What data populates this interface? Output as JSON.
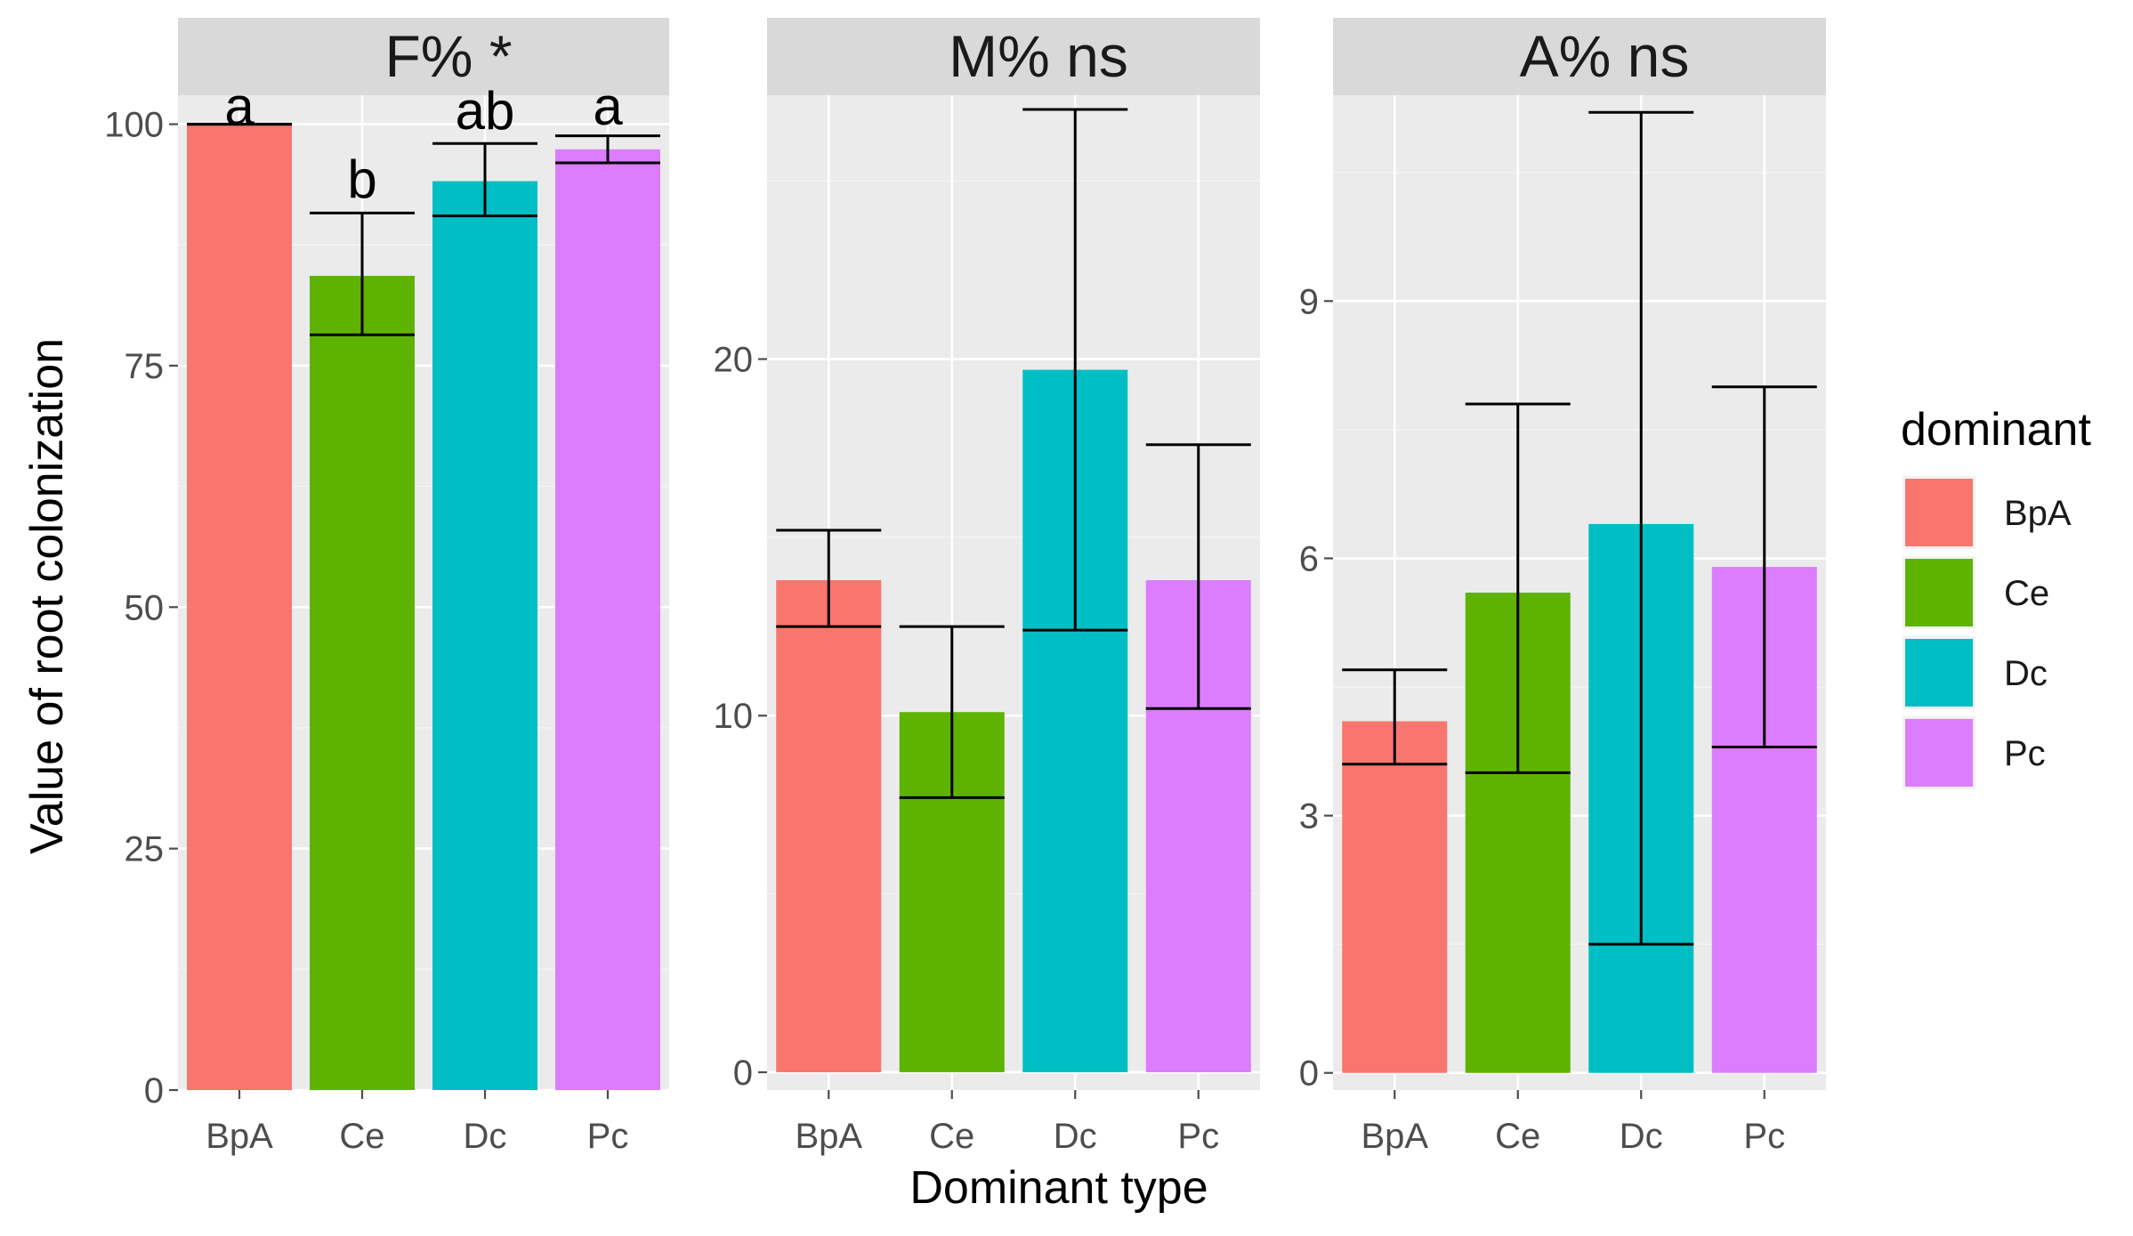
{
  "chart_data": {
    "type": "bar",
    "ylabel": "Value of root colonization",
    "xlabel": "Dominant type",
    "categories": [
      "BpA",
      "Ce",
      "Dc",
      "Pc"
    ],
    "colors": {
      "BpA": "#f8766d",
      "Ce": "#5eb300",
      "Dc": "#00bfc4",
      "Pc": "#dc7cff"
    },
    "legend": {
      "title": "dominant",
      "position": "right",
      "entries": [
        "BpA",
        "Ce",
        "Dc",
        "Pc"
      ]
    },
    "panels": [
      {
        "title": "F% *",
        "ylim": [
          0,
          103
        ],
        "ticks": [
          0,
          25,
          50,
          75,
          100
        ],
        "minor": [
          12.5,
          37.5,
          62.5,
          87.5
        ],
        "values": [
          100,
          84.3,
          94.1,
          97.4
        ],
        "err_low": [
          100,
          78.2,
          90.5,
          96.0
        ],
        "err_high": [
          100,
          90.8,
          98.0,
          98.8
        ],
        "letters": [
          "a",
          "b",
          "ab",
          "a"
        ]
      },
      {
        "title": "M% ns",
        "ylim": [
          -0.5,
          27.4
        ],
        "ticks": [
          0,
          10,
          20
        ],
        "minor": [
          5,
          15,
          25
        ],
        "values": [
          13.8,
          10.1,
          19.7,
          13.8
        ],
        "err_low": [
          12.5,
          7.7,
          12.4,
          10.2
        ],
        "err_high": [
          15.2,
          12.5,
          27.0,
          17.6
        ],
        "letters": [
          "",
          "",
          "",
          ""
        ]
      },
      {
        "title": "A% ns",
        "ylim": [
          -0.2,
          11.4
        ],
        "ticks": [
          0,
          3,
          6,
          9
        ],
        "minor": [
          1.5,
          4.5,
          7.5,
          10.5
        ],
        "values": [
          4.1,
          5.6,
          6.4,
          5.9
        ],
        "err_low": [
          3.6,
          3.5,
          1.5,
          3.8
        ],
        "err_high": [
          4.7,
          7.8,
          11.2,
          8.0
        ],
        "letters": [
          "",
          "",
          "",
          ""
        ]
      }
    ]
  }
}
